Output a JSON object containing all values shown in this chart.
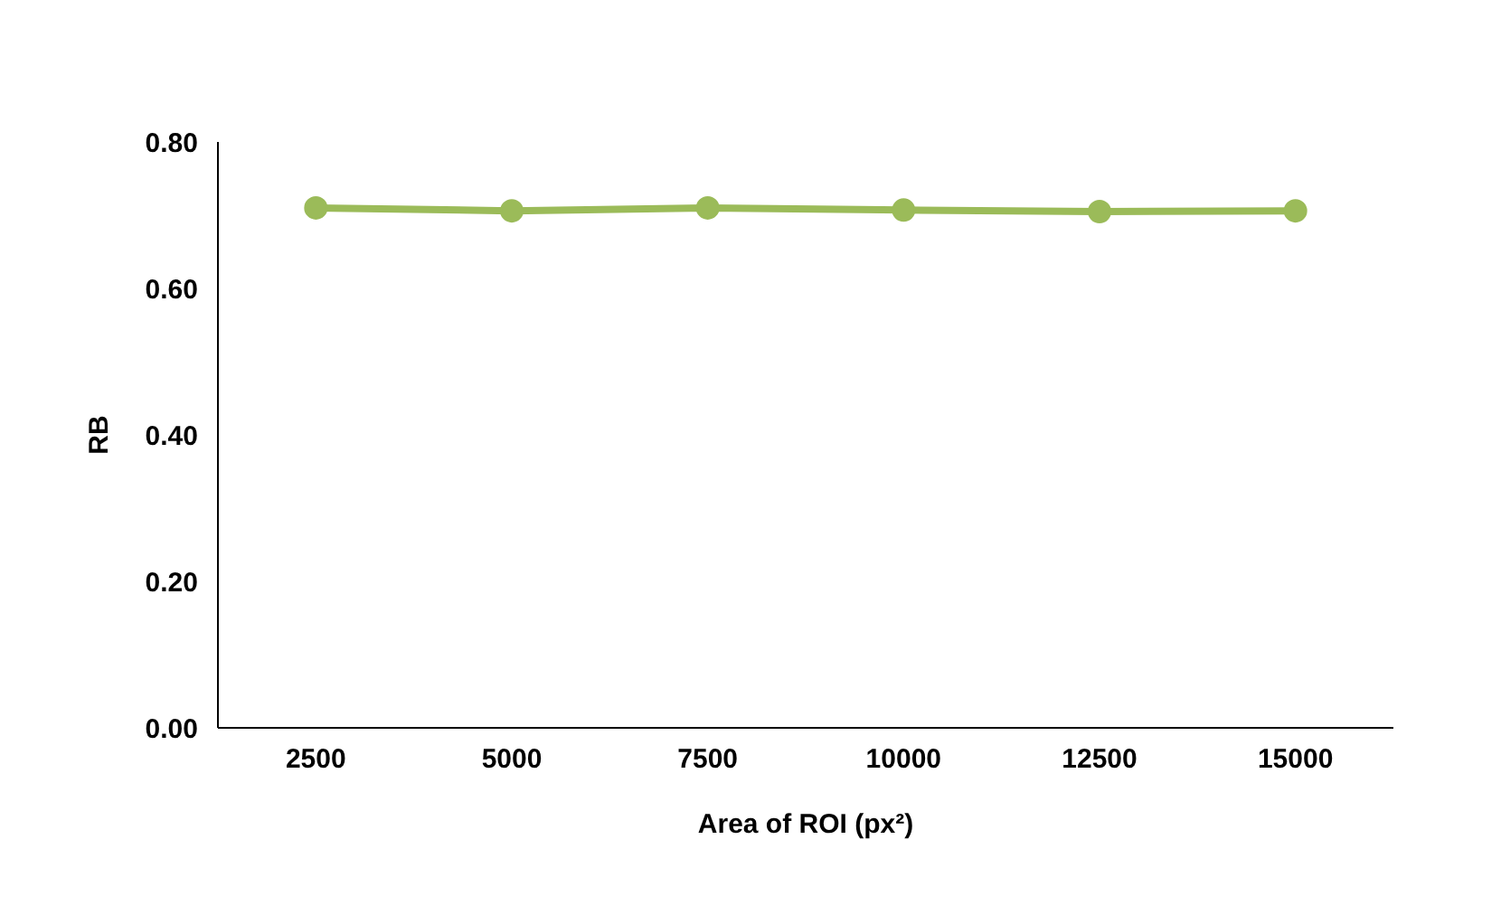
{
  "chart_data": {
    "type": "line",
    "xlabel": "Area of ROI (px²)",
    "ylabel": "RB",
    "categories": [
      "2500",
      "5000",
      "7500",
      "10000",
      "12500",
      "15000"
    ],
    "series": [
      {
        "color": "#9bbb59",
        "values": [
          0.71,
          0.706,
          0.71,
          0.707,
          0.705,
          0.706
        ]
      }
    ],
    "ylim": [
      0,
      0.8
    ],
    "yticks": [
      {
        "value": 0,
        "label": "0.00"
      },
      {
        "value": 0.2,
        "label": "0.20"
      },
      {
        "value": 0.4,
        "label": "0.40"
      },
      {
        "value": 0.6,
        "label": "0.60"
      },
      {
        "value": 0.8,
        "label": "0.80"
      }
    ],
    "grid": false,
    "marker": "circle",
    "line_style": "solid"
  }
}
